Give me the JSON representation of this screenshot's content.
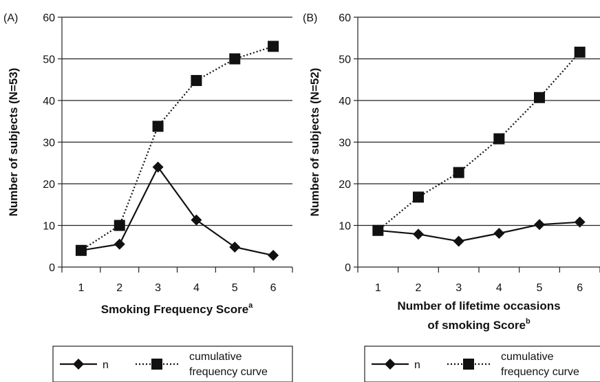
{
  "chart_data": [
    {
      "type": "line",
      "panel": "(A)",
      "xlabel": "Smoking Frequency Score",
      "xlabel_sup": "a",
      "ylabel": "Number of subjects (N=53)",
      "categories": [
        "1",
        "2",
        "3",
        "4",
        "5",
        "6"
      ],
      "yticks": [
        "0",
        "10",
        "20",
        "30",
        "40",
        "50",
        "60"
      ],
      "ylim": [
        0,
        60
      ],
      "grid": true,
      "series": [
        {
          "name": "n",
          "marker": "diamond",
          "line": "solid",
          "values": [
            4,
            5.5,
            24,
            11.3,
            4.8,
            2.8
          ]
        },
        {
          "name": "cumulative frequency curve",
          "marker": "square",
          "line": "dotted",
          "values": [
            4,
            10,
            33.8,
            44.8,
            50,
            53
          ]
        }
      ],
      "legend": {
        "position": "bottom",
        "items": [
          {
            "label": "n"
          },
          {
            "label_line1": "cumulative",
            "label_line2": "frequency curve"
          }
        ]
      }
    },
    {
      "type": "line",
      "panel": "(B)",
      "xlabel_line1": "Number of lifetime occasions",
      "xlabel_line2": "of smoking Score",
      "xlabel_sup": "b",
      "ylabel": "Number of subjects (N=52)",
      "categories": [
        "1",
        "2",
        "3",
        "4",
        "5",
        "6"
      ],
      "yticks": [
        "0",
        "10",
        "20",
        "30",
        "40",
        "50",
        "60"
      ],
      "ylim": [
        0,
        60
      ],
      "grid": true,
      "series": [
        {
          "name": "n",
          "marker": "diamond",
          "line": "solid",
          "values": [
            8.8,
            7.9,
            6.2,
            8.1,
            10.2,
            10.8
          ]
        },
        {
          "name": "cumulative frequency curve",
          "marker": "square",
          "line": "dotted",
          "values": [
            8.8,
            16.8,
            22.7,
            30.8,
            40.7,
            51.6
          ]
        }
      ],
      "legend": {
        "position": "bottom",
        "items": [
          {
            "label": "n"
          },
          {
            "label_line1": "cumulative",
            "label_line2": "frequency curve"
          }
        ]
      }
    }
  ]
}
